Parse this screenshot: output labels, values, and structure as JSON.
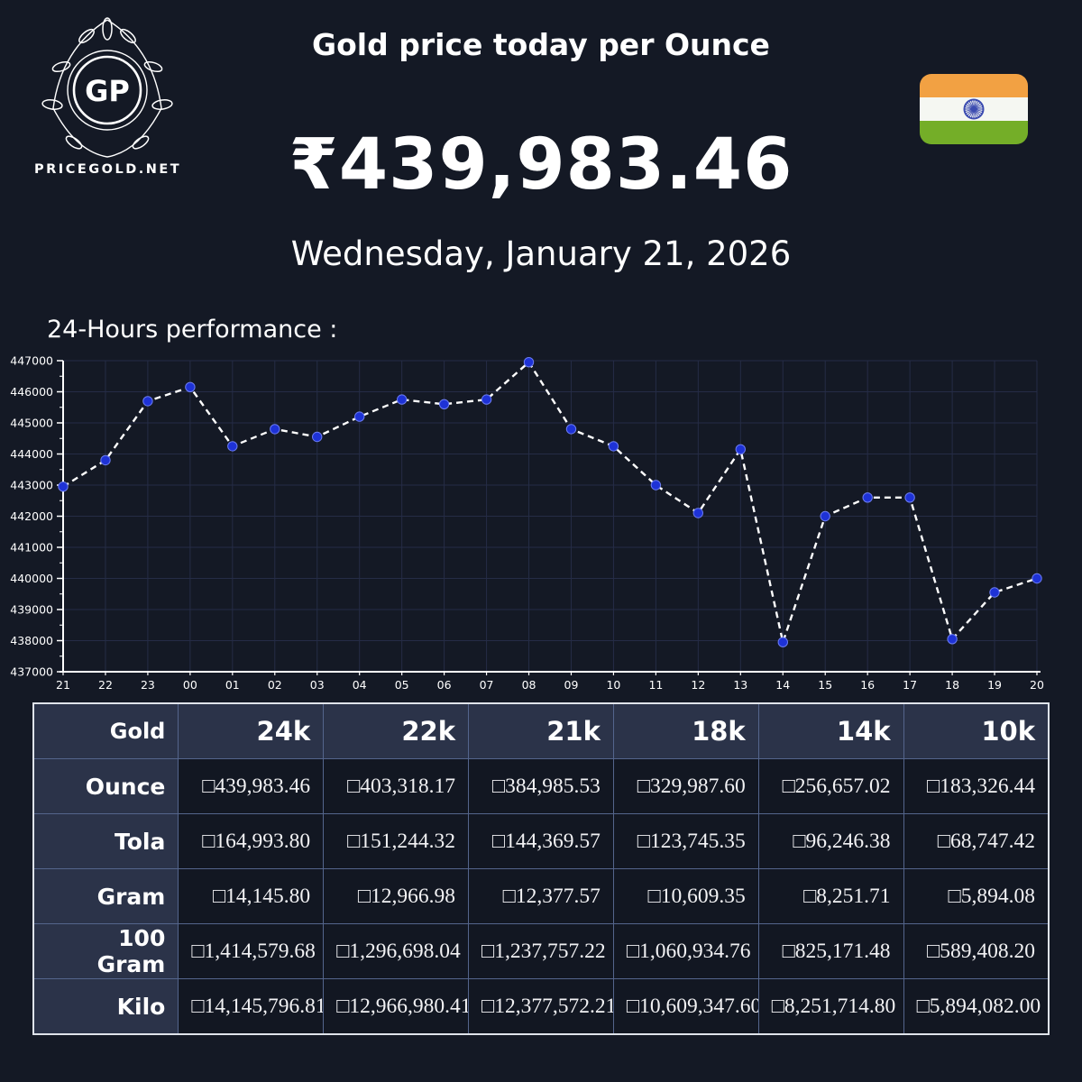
{
  "brand": {
    "monogram": "GP",
    "site": "PRICEGOLD.NET"
  },
  "header": {
    "title": "Gold price today per Ounce",
    "price": "₹439,983.46",
    "date": "Wednesday, January 21, 2026",
    "flag": "india-flag"
  },
  "chart": {
    "title": "24-Hours performance :"
  },
  "chart_data": {
    "type": "line",
    "title": "24-Hours performance :",
    "x": [
      "21",
      "22",
      "23",
      "00",
      "01",
      "02",
      "03",
      "04",
      "05",
      "06",
      "07",
      "08",
      "09",
      "10",
      "11",
      "12",
      "13",
      "14",
      "15",
      "16",
      "17",
      "18",
      "19",
      "20"
    ],
    "values": [
      442950,
      443800,
      445700,
      446150,
      444250,
      444800,
      444550,
      445200,
      445750,
      445600,
      445750,
      446950,
      444800,
      444250,
      443000,
      442100,
      444150,
      437950,
      442000,
      442600,
      442600,
      438050,
      439550,
      440000
    ],
    "ylim": [
      437000,
      447000
    ],
    "ytick_step": 1000,
    "grid": true,
    "legend": "none",
    "line_color": "#ffffff",
    "line_style": "dashed",
    "marker_color": "#1e32d6",
    "grid_color": "#252c46",
    "axis_color": "#ffffff"
  },
  "colors": {
    "background": "#141925",
    "table_header_bg": "#2b3349",
    "table_cell_bg": "#121722",
    "table_border": "#54658c",
    "flag_saffron": "#F2A143",
    "flag_white": "#F5F7F2",
    "flag_green": "#74AE28",
    "flag_chakra": "#3B4BB0"
  },
  "table": {
    "header": [
      "Gold",
      "24k",
      "22k",
      "21k",
      "18k",
      "14k",
      "10k"
    ],
    "rows": [
      {
        "label": "Ounce",
        "values": [
          "□439,983.46",
          "□403,318.17",
          "□384,985.53",
          "□329,987.60",
          "□256,657.02",
          "□183,326.44"
        ]
      },
      {
        "label": "Tola",
        "values": [
          "□164,993.80",
          "□151,244.32",
          "□144,369.57",
          "□123,745.35",
          "□96,246.38",
          "□68,747.42"
        ]
      },
      {
        "label": "Gram",
        "values": [
          "□14,145.80",
          "□12,966.98",
          "□12,377.57",
          "□10,609.35",
          "□8,251.71",
          "□5,894.08"
        ]
      },
      {
        "label": "100 Gram",
        "values": [
          "□1,414,579.68",
          "□1,296,698.04",
          "□1,237,757.22",
          "□1,060,934.76",
          "□825,171.48",
          "□589,408.20"
        ]
      },
      {
        "label": "Kilo",
        "values": [
          "□14,145,796.81",
          "□12,966,980.41",
          "□12,377,572.21",
          "□10,609,347.60",
          "□8,251,714.80",
          "□5,894,082.00"
        ]
      }
    ]
  }
}
